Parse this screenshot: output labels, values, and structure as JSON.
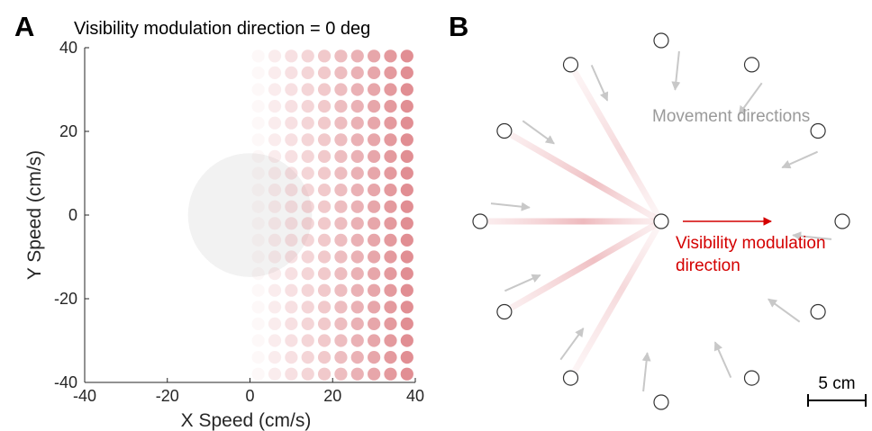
{
  "panel_a": {
    "label": "A",
    "title": "Visibility modulation direction = 0 deg",
    "xlabel": "X Speed (cm/s)",
    "ylabel": "Y Speed (cm/s)",
    "xticks": [
      -40,
      -20,
      0,
      20,
      40
    ],
    "yticks": [
      -40,
      -20,
      0,
      20,
      40
    ],
    "xtick_labels": [
      "-40",
      "-20",
      "0",
      "20",
      "40"
    ],
    "ytick_labels": [
      "-40",
      "-20",
      "0",
      "20",
      "40"
    ],
    "xlim": [
      -40,
      40
    ],
    "ylim": [
      -40,
      40
    ],
    "gray_circle": {
      "cx": 0,
      "cy": 0,
      "r": 15,
      "color": "#f2f2f2"
    },
    "dot_grid": {
      "x_start": 2,
      "x_end": 38,
      "y_start": -38,
      "y_end": 38,
      "step": 4,
      "dot_radius": 1.55
    },
    "dot_color": "#e08a8f"
  },
  "panel_b": {
    "label": "B",
    "movement_label": "Movement directions",
    "visibility_label_line1": "Visibility modulation",
    "visibility_label_line2": "direction",
    "scalebar_label": "5 cm",
    "arrow_color": "#c8c8c8",
    "red_color": "#d40000",
    "target_angles_deg": [
      0,
      30,
      60,
      90,
      120,
      150,
      180,
      210,
      240,
      270,
      300,
      330
    ],
    "spokes": [
      {
        "angle_deg": 120,
        "strength": 0.55
      },
      {
        "angle_deg": 150,
        "strength": 0.9
      },
      {
        "angle_deg": 180,
        "strength": 1.0
      },
      {
        "angle_deg": 210,
        "strength": 0.9
      },
      {
        "angle_deg": 240,
        "strength": 0.55
      }
    ]
  },
  "chart_data": {
    "type": "heatmap",
    "title": "Visibility modulation direction = 0 deg",
    "xlabel": "X Speed (cm/s)",
    "ylabel": "Y Speed (cm/s)",
    "xlim": [
      -40,
      40
    ],
    "ylim": [
      -40,
      40
    ],
    "x": [
      2,
      6,
      10,
      14,
      18,
      22,
      26,
      30,
      34,
      38
    ],
    "y": [
      -38,
      -34,
      -30,
      -26,
      -22,
      -18,
      -14,
      -10,
      -6,
      -2,
      2,
      6,
      10,
      14,
      18,
      22,
      26,
      30,
      34,
      38
    ],
    "intensity_by_x": [
      0.05,
      0.15,
      0.25,
      0.35,
      0.45,
      0.55,
      0.65,
      0.75,
      0.85,
      0.95
    ]
  }
}
